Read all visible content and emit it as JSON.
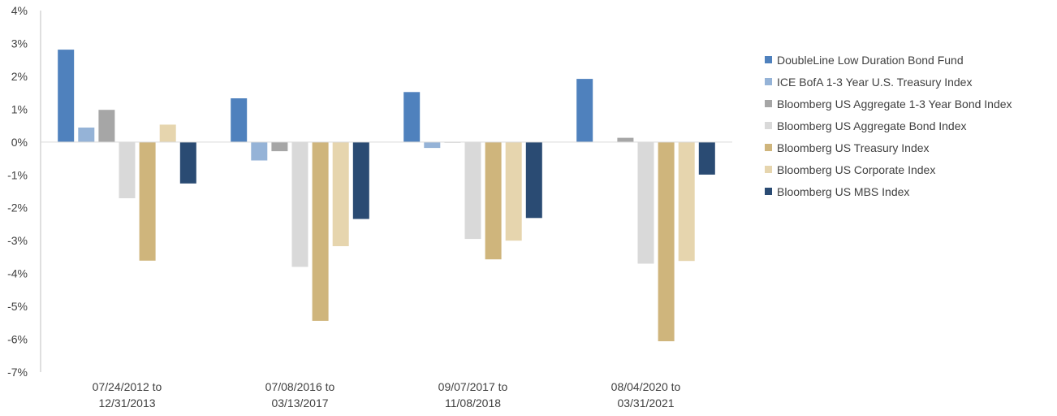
{
  "chart_data": {
    "type": "bar",
    "categories": [
      [
        "07/24/2012 to",
        "12/31/2013"
      ],
      [
        "07/08/2016 to",
        "03/13/2017"
      ],
      [
        "09/07/2017 to",
        "11/08/2018"
      ],
      [
        "08/04/2020 to",
        "03/31/2021"
      ]
    ],
    "y_ticks": [
      "4%",
      "3%",
      "2%",
      "1%",
      "0%",
      "-1%",
      "-2%",
      "-3%",
      "-4%",
      "-5%",
      "-6%",
      "-7%"
    ],
    "ylim": [
      -7,
      4
    ],
    "unit": "%",
    "grid": false,
    "legend_position": "right",
    "series": [
      {
        "name": "DoubleLine Low Duration Bond Fund",
        "color": "#4F81BD",
        "values": [
          2.81,
          1.33,
          1.52,
          1.92
        ]
      },
      {
        "name": "ICE BofA 1-3 Year U.S. Treasury Index",
        "color": "#95B3D7",
        "values": [
          0.44,
          -0.56,
          -0.18,
          0.0
        ]
      },
      {
        "name": "Bloomberg US Aggregate 1-3 Year Bond Index",
        "color": "#A6A6A6",
        "values": [
          0.98,
          -0.28,
          -0.02,
          0.13
        ]
      },
      {
        "name": "Bloomberg US Aggregate Bond Index",
        "color": "#D9D9D9",
        "values": [
          -1.71,
          -3.8,
          -2.95,
          -3.7
        ]
      },
      {
        "name": "Bloomberg US Treasury Index",
        "color": "#CFB57C",
        "values": [
          -3.61,
          -5.44,
          -3.57,
          -6.06
        ]
      },
      {
        "name": "Bloomberg US Corporate Index",
        "color": "#E6D5AE",
        "values": [
          0.53,
          -3.17,
          -3.0,
          -3.62
        ]
      },
      {
        "name": "Bloomberg US MBS Index",
        "color": "#2A4B73",
        "values": [
          -1.26,
          -2.34,
          -2.31,
          -0.99
        ]
      }
    ]
  }
}
